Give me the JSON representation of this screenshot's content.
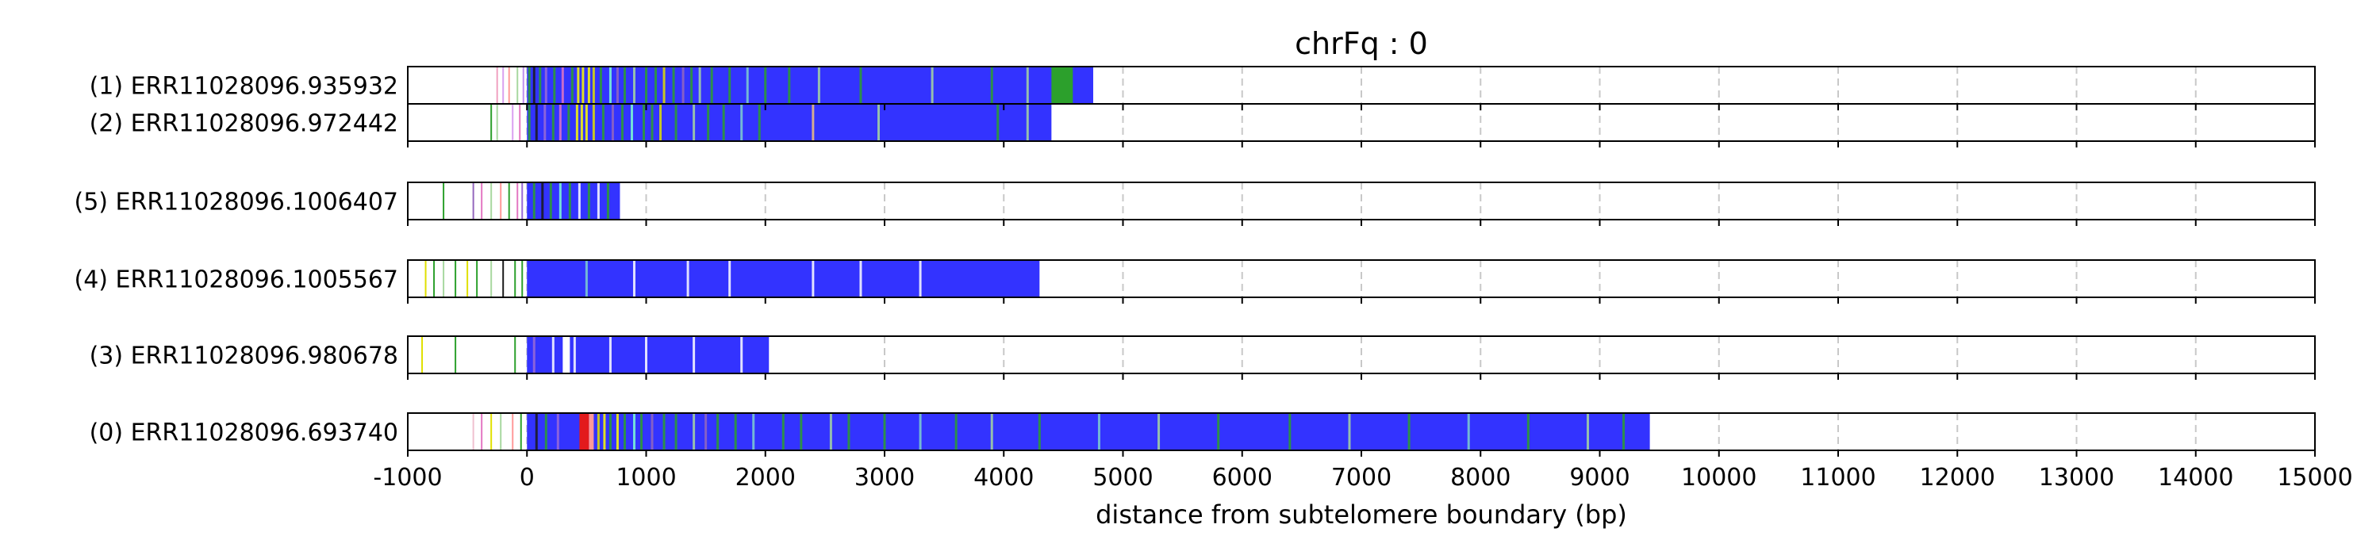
{
  "chart_data": {
    "type": "bar",
    "title": "chrFq : 0",
    "xlabel": "distance from subtelomere boundary (bp)",
    "xlim": [
      -1000,
      15000
    ],
    "ticks": [
      -1000,
      0,
      1000,
      2000,
      3000,
      4000,
      5000,
      6000,
      7000,
      8000,
      9000,
      10000,
      11000,
      12000,
      13000,
      14000,
      15000
    ],
    "tick_labels": [
      "-1000",
      "0",
      "1000",
      "2000",
      "3000",
      "4000",
      "5000",
      "6000",
      "7000",
      "8000",
      "9000",
      "10000",
      "11000",
      "12000",
      "13000",
      "14000",
      "15000"
    ],
    "grid": "vertical dashed",
    "series": [
      {
        "name": "(1) ERR11028096.935932",
        "group": 0,
        "start": -1000,
        "end": 4750,
        "main_block": [
          0,
          4750
        ],
        "segments": [
          {
            "s": 4400,
            "e": 4580,
            "c": "#2ca02c"
          },
          {
            "s": 4580,
            "e": 4600,
            "c": "#3333ff"
          },
          {
            "s": 4600,
            "e": 4750,
            "c": "#3333ff"
          }
        ],
        "lines": [
          {
            "x": -250,
            "c": "#f0a0c0"
          },
          {
            "x": -200,
            "c": "#d9a0f0"
          },
          {
            "x": -150,
            "c": "#ff9999"
          },
          {
            "x": -80,
            "c": "#a8d8a0"
          },
          {
            "x": -30,
            "c": "#c090f0"
          },
          {
            "x": 20,
            "c": "#2ca02c"
          },
          {
            "x": 60,
            "c": "#1a1a1a"
          },
          {
            "x": 110,
            "c": "#2ca02c"
          },
          {
            "x": 160,
            "c": "#9a6bd6"
          },
          {
            "x": 230,
            "c": "#2ca02c"
          },
          {
            "x": 300,
            "c": "#e377c2"
          },
          {
            "x": 380,
            "c": "#2ca02c"
          },
          {
            "x": 430,
            "c": "#ffff00"
          },
          {
            "x": 470,
            "c": "#ffff00"
          },
          {
            "x": 520,
            "c": "#ffff00"
          },
          {
            "x": 560,
            "c": "#e0e000"
          },
          {
            "x": 620,
            "c": "#2ca02c"
          },
          {
            "x": 700,
            "c": "#7fffd4"
          },
          {
            "x": 760,
            "c": "#9467bd"
          },
          {
            "x": 820,
            "c": "#2ca02c"
          },
          {
            "x": 900,
            "c": "#a8d8a0"
          },
          {
            "x": 1000,
            "c": "#2ca02c"
          },
          {
            "x": 1080,
            "c": "#2ca02c"
          },
          {
            "x": 1150,
            "c": "#e0e000"
          },
          {
            "x": 1230,
            "c": "#2ca02c"
          },
          {
            "x": 1310,
            "c": "#9467bd"
          },
          {
            "x": 1380,
            "c": "#2ca02c"
          },
          {
            "x": 1450,
            "c": "#a8d8a0"
          },
          {
            "x": 1550,
            "c": "#2ca02c"
          },
          {
            "x": 1700,
            "c": "#2ca02c"
          },
          {
            "x": 1850,
            "c": "#7fd0d0"
          },
          {
            "x": 2000,
            "c": "#2ca02c"
          },
          {
            "x": 2200,
            "c": "#2ca02c"
          },
          {
            "x": 2450,
            "c": "#a8d8a0"
          },
          {
            "x": 2800,
            "c": "#2ca02c"
          },
          {
            "x": 3400,
            "c": "#a8d8a0"
          },
          {
            "x": 3900,
            "c": "#2ca02c"
          },
          {
            "x": 4200,
            "c": "#a8d8a0"
          }
        ]
      },
      {
        "name": "(2) ERR11028096.972442",
        "group": 0,
        "start": -1000,
        "end": 4400,
        "main_block": [
          0,
          4400
        ],
        "segments": [],
        "lines": [
          {
            "x": -300,
            "c": "#2ca02c"
          },
          {
            "x": -250,
            "c": "#a8d8a0"
          },
          {
            "x": -120,
            "c": "#d9a0f0"
          },
          {
            "x": -60,
            "c": "#e377c2"
          },
          {
            "x": 20,
            "c": "#2ca02c"
          },
          {
            "x": 80,
            "c": "#1a1a1a"
          },
          {
            "x": 150,
            "c": "#9a6bd6"
          },
          {
            "x": 220,
            "c": "#2ca02c"
          },
          {
            "x": 280,
            "c": "#e377c2"
          },
          {
            "x": 350,
            "c": "#2ca02c"
          },
          {
            "x": 420,
            "c": "#ffff00"
          },
          {
            "x": 460,
            "c": "#ffff00"
          },
          {
            "x": 500,
            "c": "#ffff00"
          },
          {
            "x": 560,
            "c": "#e0e000"
          },
          {
            "x": 640,
            "c": "#2ca02c"
          },
          {
            "x": 720,
            "c": "#9467bd"
          },
          {
            "x": 800,
            "c": "#2ca02c"
          },
          {
            "x": 880,
            "c": "#7fffd4"
          },
          {
            "x": 980,
            "c": "#2ca02c"
          },
          {
            "x": 1050,
            "c": "#2ca02c"
          },
          {
            "x": 1120,
            "c": "#e0e000"
          },
          {
            "x": 1250,
            "c": "#2ca02c"
          },
          {
            "x": 1400,
            "c": "#a8d8a0"
          },
          {
            "x": 1520,
            "c": "#2ca02c"
          },
          {
            "x": 1650,
            "c": "#2ca02c"
          },
          {
            "x": 1800,
            "c": "#7fd0d0"
          },
          {
            "x": 1950,
            "c": "#2ca02c"
          },
          {
            "x": 2400,
            "c": "#f0c080"
          },
          {
            "x": 2950,
            "c": "#a8d8a0"
          },
          {
            "x": 3950,
            "c": "#2ca02c"
          },
          {
            "x": 4200,
            "c": "#a8d8a0"
          }
        ]
      },
      {
        "name": "(5) ERR11028096.1006407",
        "group": 1,
        "start": -1000,
        "end": 780,
        "main_block": [
          0,
          780
        ],
        "segments": [],
        "lines": [
          {
            "x": -700,
            "c": "#2ca02c"
          },
          {
            "x": -450,
            "c": "#9467bd"
          },
          {
            "x": -380,
            "c": "#e377c2"
          },
          {
            "x": -300,
            "c": "#a8d8a0"
          },
          {
            "x": -220,
            "c": "#ff9999"
          },
          {
            "x": -150,
            "c": "#2ca02c"
          },
          {
            "x": -80,
            "c": "#e377c2"
          },
          {
            "x": -40,
            "c": "#9a6bd6"
          },
          {
            "x": 60,
            "c": "#2ca02c"
          },
          {
            "x": 130,
            "c": "#1a1a1a"
          },
          {
            "x": 200,
            "c": "#2ca02c"
          },
          {
            "x": 280,
            "c": "#7fffd4"
          },
          {
            "x": 360,
            "c": "#2ca02c"
          },
          {
            "x": 440,
            "c": "#ffffff"
          },
          {
            "x": 520,
            "c": "#2ca02c"
          },
          {
            "x": 600,
            "c": "#ffffff"
          },
          {
            "x": 680,
            "c": "#2ca02c"
          }
        ]
      },
      {
        "name": "(4) ERR11028096.1005567",
        "group": 2,
        "start": -1000,
        "end": 4300,
        "main_block": [
          0,
          4300
        ],
        "segments": [],
        "lines": [
          {
            "x": -850,
            "c": "#e0e000"
          },
          {
            "x": -780,
            "c": "#2ca02c"
          },
          {
            "x": -700,
            "c": "#a8d8a0"
          },
          {
            "x": -600,
            "c": "#2ca02c"
          },
          {
            "x": -500,
            "c": "#e0e000"
          },
          {
            "x": -420,
            "c": "#2ca02c"
          },
          {
            "x": -300,
            "c": "#a8d8a0"
          },
          {
            "x": -200,
            "c": "#1a1a1a"
          },
          {
            "x": -100,
            "c": "#2ca02c"
          },
          {
            "x": -40,
            "c": "#2ca02c"
          },
          {
            "x": 500,
            "c": "#7fd0d0"
          },
          {
            "x": 900,
            "c": "#ffffff"
          },
          {
            "x": 1350,
            "c": "#ffffff"
          },
          {
            "x": 1700,
            "c": "#ffffff"
          },
          {
            "x": 2400,
            "c": "#ffffff"
          },
          {
            "x": 2800,
            "c": "#ffffff"
          },
          {
            "x": 3300,
            "c": "#ffffff"
          }
        ]
      },
      {
        "name": "(3) ERR11028096.980678",
        "group": 3,
        "start": -1000,
        "end": 2030,
        "main_block": [
          0,
          2030
        ],
        "segments": [
          {
            "s": 300,
            "e": 360,
            "c": "#ffffff"
          }
        ],
        "lines": [
          {
            "x": -880,
            "c": "#e0e000"
          },
          {
            "x": -600,
            "c": "#2ca02c"
          },
          {
            "x": -100,
            "c": "#2ca02c"
          },
          {
            "x": 60,
            "c": "#9a6bd6"
          },
          {
            "x": 220,
            "c": "#ffffff"
          },
          {
            "x": 400,
            "c": "#ffffff"
          },
          {
            "x": 700,
            "c": "#ffffff"
          },
          {
            "x": 1000,
            "c": "#ffffff"
          },
          {
            "x": 1400,
            "c": "#ffffff"
          },
          {
            "x": 1800,
            "c": "#ffffff"
          }
        ]
      },
      {
        "name": "(0) ERR11028096.693740",
        "group": 4,
        "start": -1000,
        "end": 9420,
        "main_block": [
          0,
          9420
        ],
        "segments": [
          {
            "s": 440,
            "e": 520,
            "c": "#e31a1c"
          },
          {
            "s": 520,
            "e": 560,
            "c": "#ff9999"
          }
        ],
        "lines": [
          {
            "x": -450,
            "c": "#f0c0d0"
          },
          {
            "x": -380,
            "c": "#e377c2"
          },
          {
            "x": -300,
            "c": "#e0e000"
          },
          {
            "x": -220,
            "c": "#a8d8a0"
          },
          {
            "x": -120,
            "c": "#ff9999"
          },
          {
            "x": -50,
            "c": "#2ca02c"
          },
          {
            "x": 80,
            "c": "#1a1a1a"
          },
          {
            "x": 160,
            "c": "#2ca02c"
          },
          {
            "x": 260,
            "c": "#9a6bd6"
          },
          {
            "x": 600,
            "c": "#e0e000"
          },
          {
            "x": 650,
            "c": "#ffff00"
          },
          {
            "x": 700,
            "c": "#2ca02c"
          },
          {
            "x": 760,
            "c": "#ffff00"
          },
          {
            "x": 820,
            "c": "#2ca02c"
          },
          {
            "x": 900,
            "c": "#7fffd4"
          },
          {
            "x": 960,
            "c": "#2ca02c"
          },
          {
            "x": 1050,
            "c": "#9467bd"
          },
          {
            "x": 1150,
            "c": "#2ca02c"
          },
          {
            "x": 1250,
            "c": "#2ca02c"
          },
          {
            "x": 1400,
            "c": "#a8d8a0"
          },
          {
            "x": 1500,
            "c": "#9467bd"
          },
          {
            "x": 1600,
            "c": "#2ca02c"
          },
          {
            "x": 1750,
            "c": "#2ca02c"
          },
          {
            "x": 1900,
            "c": "#7fd0d0"
          },
          {
            "x": 2150,
            "c": "#2ca02c"
          },
          {
            "x": 2300,
            "c": "#2ca02c"
          },
          {
            "x": 2550,
            "c": "#a8d8a0"
          },
          {
            "x": 2700,
            "c": "#2ca02c"
          },
          {
            "x": 3000,
            "c": "#2ca02c"
          },
          {
            "x": 3300,
            "c": "#7fd0d0"
          },
          {
            "x": 3600,
            "c": "#2ca02c"
          },
          {
            "x": 3900,
            "c": "#a8d8a0"
          },
          {
            "x": 4300,
            "c": "#2ca02c"
          },
          {
            "x": 4800,
            "c": "#7fd0d0"
          },
          {
            "x": 5300,
            "c": "#a8d8a0"
          },
          {
            "x": 5800,
            "c": "#2ca02c"
          },
          {
            "x": 6400,
            "c": "#2ca02c"
          },
          {
            "x": 6900,
            "c": "#a8d8a0"
          },
          {
            "x": 7400,
            "c": "#2ca02c"
          },
          {
            "x": 7900,
            "c": "#7fd0d0"
          },
          {
            "x": 8400,
            "c": "#2ca02c"
          },
          {
            "x": 8900,
            "c": "#a8d8a0"
          },
          {
            "x": 9200,
            "c": "#2ca02c"
          }
        ]
      }
    ]
  },
  "colors": {
    "main": "#3333ff",
    "frame": "#000000",
    "grid": "#c8c8c8"
  }
}
